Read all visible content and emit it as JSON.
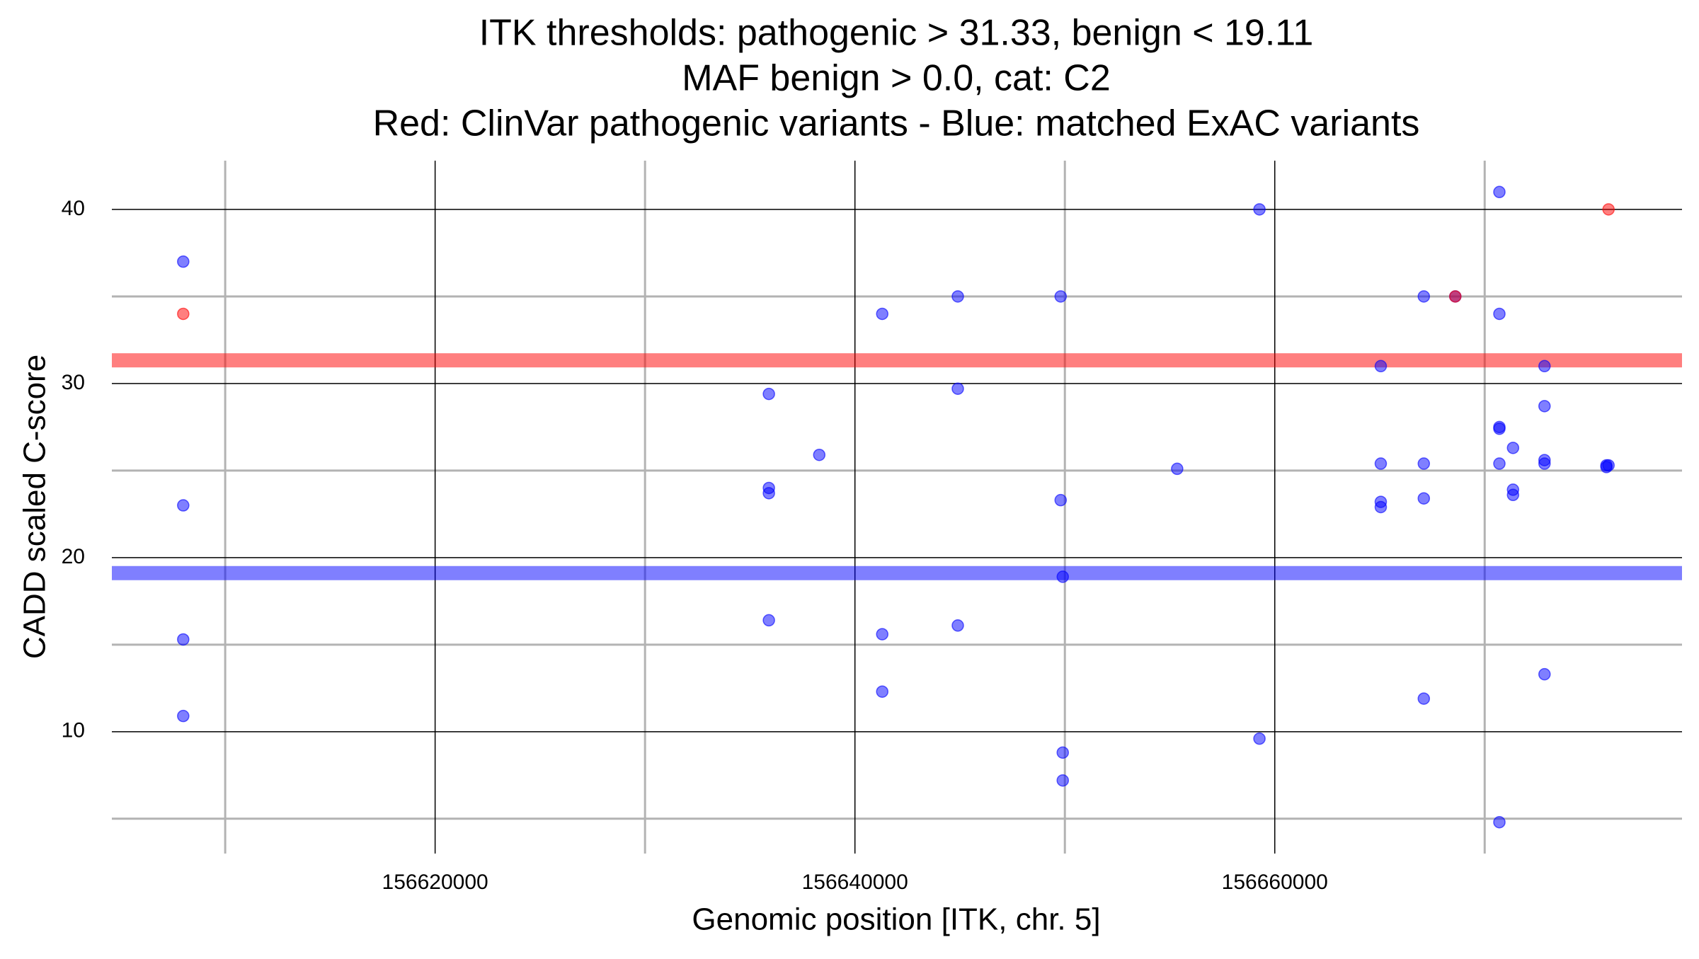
{
  "chart_data": {
    "type": "scatter",
    "title": [
      "ITK thresholds: pathogenic > 31.33, benign < 19.11",
      "MAF benign > 0.0, cat: C2",
      "Red: ClinVar pathogenic variants - Blue: matched ExAC variants"
    ],
    "x_label": "Genomic position [ITK, chr. 5]",
    "y_label": "CADD scaled C-score",
    "xlim": [
      156604600,
      156679400
    ],
    "ylim": [
      3,
      42.8
    ],
    "xticks": [
      156620000,
      156640000,
      156660000
    ],
    "yticks": [
      10,
      20,
      30,
      40
    ],
    "xminor": [
      156610000,
      156630000,
      156650000,
      156670000
    ],
    "yminor": [
      5,
      15,
      25,
      35
    ],
    "grid": true,
    "thresholds": [
      {
        "value": 31.33,
        "color": "#ff0000"
      },
      {
        "value": 19.11,
        "color": "#0000ff"
      }
    ],
    "series": [
      {
        "color": "#0000ff",
        "x": [
          156608000,
          156608000,
          156608000,
          156608000,
          156635900,
          156635900,
          156635900,
          156635900,
          156638300,
          156641300,
          156641300,
          156641300,
          156644900,
          156644900,
          156644900,
          156649800,
          156649800,
          156649900,
          156649900,
          156649900,
          156655350,
          156659270,
          156659270,
          156665050,
          156665050,
          156665050,
          156665050,
          156667100,
          156667100,
          156667100,
          156667100,
          156668600,
          156670700,
          156670700,
          156670700,
          156670700,
          156670700,
          156670700,
          156671350,
          156671350,
          156671350,
          156672850,
          156672850,
          156672850,
          156672850,
          156672850,
          156675800,
          156675800,
          156675900
        ],
        "values": [
          37,
          23,
          15.3,
          10.9,
          29.4,
          24,
          23.7,
          16.4,
          25.9,
          34,
          15.6,
          12.3,
          35,
          29.7,
          16.1,
          35,
          23.3,
          18.9,
          8.8,
          7.2,
          25.1,
          40,
          9.6,
          31,
          25.4,
          23.2,
          22.9,
          35,
          25.4,
          23.4,
          11.9,
          35,
          41,
          34,
          27.5,
          27.4,
          25.4,
          4.8,
          26.3,
          23.9,
          23.6,
          31,
          28.7,
          25.6,
          25.4,
          13.3,
          25.3,
          25.2,
          25.3
        ]
      },
      {
        "color": "#ff0000",
        "x": [
          156608000,
          156668600,
          156675900
        ],
        "values": [
          34,
          35,
          40
        ]
      }
    ]
  }
}
